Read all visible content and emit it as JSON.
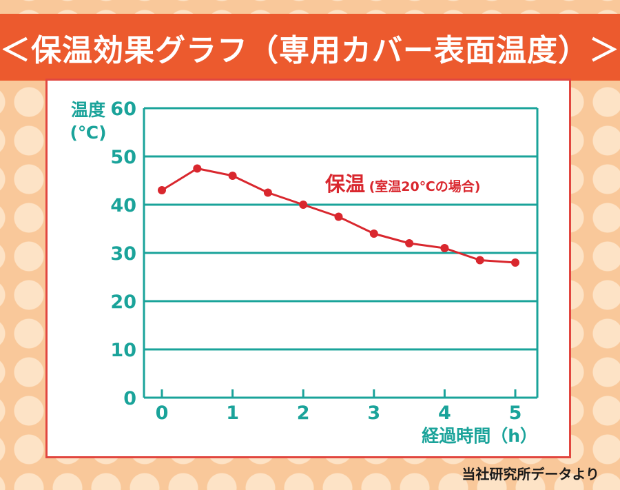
{
  "header": {
    "title": "＜保温効果グラフ（専用カバー表面温度）＞"
  },
  "footer": {
    "source": "当社研究所データより"
  },
  "colors": {
    "banner": "#ec5a2e",
    "panel_border": "#e1463f",
    "axis": "#1aa39a",
    "series": "#d9272e"
  },
  "chart_data": {
    "type": "line",
    "ylabel_line1": "温度",
    "ylabel_line2": "(℃)",
    "xlabel": "経過時間（h）",
    "ylim": [
      0,
      60
    ],
    "xlim": [
      0,
      5
    ],
    "yticks": [
      0,
      10,
      20,
      30,
      40,
      50,
      60
    ],
    "xticks": [
      0,
      1,
      2,
      3,
      4,
      5
    ],
    "grid": true,
    "series": [
      {
        "name": "保温",
        "name_note": "(室温20℃の場合)",
        "x": [
          0,
          0.5,
          1,
          1.5,
          2,
          2.5,
          3,
          3.5,
          4,
          4.5,
          5
        ],
        "values": [
          43,
          47.5,
          46,
          42.5,
          40,
          37.5,
          34,
          32,
          31,
          28.5,
          28
        ]
      }
    ]
  }
}
